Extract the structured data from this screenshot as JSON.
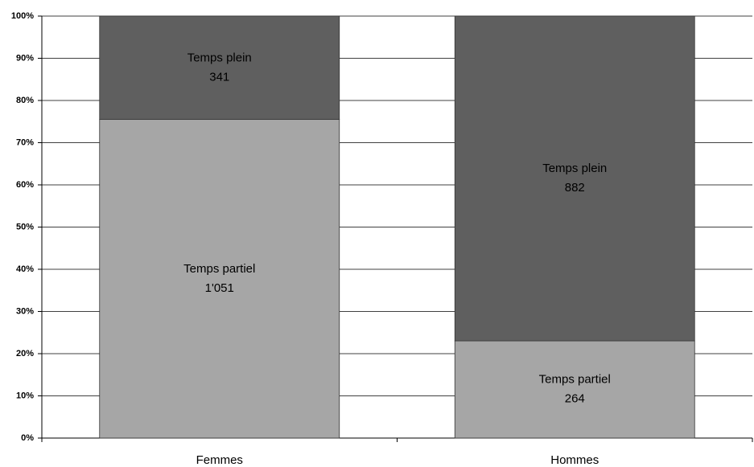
{
  "chart_data": {
    "type": "bar",
    "stacking": "percent",
    "categories": [
      "Femmes",
      "Hommes"
    ],
    "series": [
      {
        "name": "Temps partiel",
        "color": "#a6a6a6",
        "values": [
          1051,
          264
        ],
        "value_labels": [
          "1'051",
          "264"
        ]
      },
      {
        "name": "Temps plein",
        "color": "#5f5f5f",
        "values": [
          341,
          882
        ]
      }
    ],
    "ylim": [
      0,
      100
    ],
    "yticks": [
      {
        "value": 0,
        "label": "0%"
      },
      {
        "value": 10,
        "label": "10%"
      },
      {
        "value": 20,
        "label": "20%"
      },
      {
        "value": 30,
        "label": "30%"
      },
      {
        "value": 40,
        "label": "40%"
      },
      {
        "value": 50,
        "label": "50%"
      },
      {
        "value": 60,
        "label": "60%"
      },
      {
        "value": 70,
        "label": "70%"
      },
      {
        "value": 80,
        "label": "80%"
      },
      {
        "value": 90,
        "label": "90%"
      },
      {
        "value": 100,
        "label": "100%"
      }
    ],
    "grid": true
  }
}
